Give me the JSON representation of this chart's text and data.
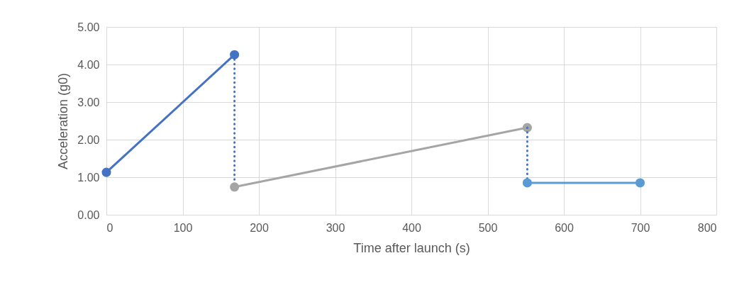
{
  "chart_data": {
    "type": "line",
    "xlabel": "Time after launch (s)",
    "ylabel": "Acceleration (g0)",
    "xlim": [
      0,
      800
    ],
    "xticks": [
      0,
      100,
      200,
      300,
      400,
      500,
      600,
      700,
      800
    ],
    "ylim": [
      0,
      5
    ],
    "yticks": [
      {
        "value": 0,
        "label": "0.00"
      },
      {
        "value": 1,
        "label": "1.00"
      },
      {
        "value": 2,
        "label": "2.00"
      },
      {
        "value": 3,
        "label": "3.00"
      },
      {
        "value": 4,
        "label": "4.00"
      },
      {
        "value": 5,
        "label": "5.00"
      }
    ],
    "grid": true,
    "series": [
      {
        "color": "#4472c4",
        "x": [
          0,
          168
        ],
        "values": [
          1.13,
          4.26
        ],
        "marker": "circle",
        "line_style": "solid"
      },
      {
        "color": "#4472c4",
        "x": [
          168,
          168
        ],
        "values": [
          4.26,
          0.74
        ],
        "marker": "none",
        "line_style": "dotted"
      },
      {
        "color": "#a5a5a5",
        "x": [
          168,
          552
        ],
        "values": [
          0.74,
          2.32
        ],
        "marker": "circle",
        "line_style": "solid"
      },
      {
        "color": "#4472c4",
        "x": [
          552,
          552
        ],
        "values": [
          2.32,
          0.85
        ],
        "marker": "none",
        "line_style": "dotted"
      },
      {
        "color": "#5b9bd5",
        "x": [
          552,
          700
        ],
        "values": [
          0.85,
          0.85
        ],
        "marker": "circle",
        "line_style": "solid"
      }
    ]
  }
}
